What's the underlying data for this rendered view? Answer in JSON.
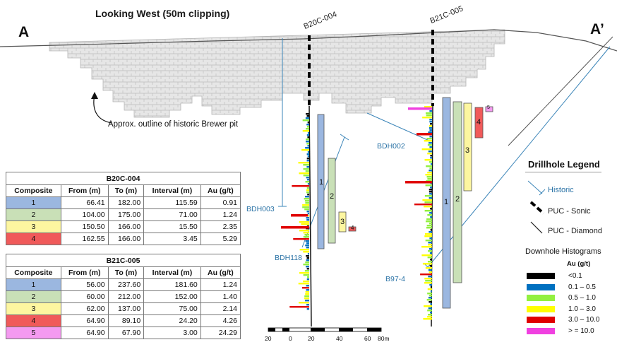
{
  "section": {
    "title": "Looking West (50m clipping)",
    "end_a": "A",
    "end_b": "A’",
    "pit_note": "Approx. outline of historic Brewer pit"
  },
  "holes": {
    "b20c": "B20C-004",
    "b21c": "B21C-005"
  },
  "historic_holes": {
    "bdh003": "BDH003",
    "bdh118": "BDH118",
    "bdh002": "BDH002",
    "b97_4": "B97-4"
  },
  "composite_labels": {
    "b20c": [
      "1",
      "2",
      "3",
      "4"
    ],
    "b21c": [
      "1",
      "2",
      "3",
      "4",
      "5"
    ]
  },
  "tables": {
    "b20c": {
      "caption": "B20C-004",
      "headers": [
        "Composite",
        "From (m)",
        "To (m)",
        "Interval (m)",
        "Au (g/t)"
      ],
      "rows": [
        [
          "1",
          "66.41",
          "182.00",
          "115.59",
          "0.91"
        ],
        [
          "2",
          "104.00",
          "175.00",
          "71.00",
          "1.24"
        ],
        [
          "3",
          "150.50",
          "166.00",
          "15.50",
          "2.35"
        ],
        [
          "4",
          "162.55",
          "166.00",
          "3.45",
          "5.29"
        ]
      ]
    },
    "b21c": {
      "caption": "B21C-005",
      "headers": [
        "Composite",
        "From (m)",
        "To (m)",
        "Interval (m)",
        "Au (g/t)"
      ],
      "rows": [
        [
          "1",
          "56.00",
          "237.60",
          "181.60",
          "1.24"
        ],
        [
          "2",
          "60.00",
          "212.00",
          "152.00",
          "1.40"
        ],
        [
          "3",
          "62.00",
          "137.00",
          "75.00",
          "2.14"
        ],
        [
          "4",
          "64.90",
          "89.10",
          "24.20",
          "4.26"
        ],
        [
          "5",
          "64.90",
          "67.90",
          "3.00",
          "24.29"
        ]
      ]
    }
  },
  "composite_colors": [
    "#9bb7e0",
    "#c9e0b7",
    "#fdf6a0",
    "#f05a5a",
    "#f49af0"
  ],
  "legend": {
    "title": "Drillhole Legend",
    "historic": "Historic",
    "sonic": "PUC - Sonic",
    "diamond": "PUC - Diamond",
    "histogram_title": "Downhole Histograms",
    "au_title": "Au (g/t)",
    "bins": [
      {
        "label": "<0.1",
        "color": "#000000"
      },
      {
        "label": "0.1 – 0.5",
        "color": "#0070c0"
      },
      {
        "label": "0.5 – 1.0",
        "color": "#92f040"
      },
      {
        "label": "1.0 – 3.0",
        "color": "#ffff00"
      },
      {
        "label": "3.0 – 10.0",
        "color": "#e00000"
      },
      {
        "label": "> = 10.0",
        "color": "#f040e0"
      }
    ]
  },
  "scale_bar": {
    "ticks": [
      "20",
      "0",
      "20",
      "40",
      "60",
      "80m"
    ]
  }
}
